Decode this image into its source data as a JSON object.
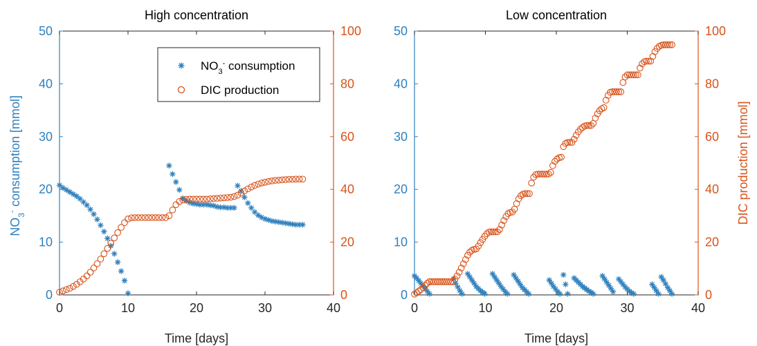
{
  "colors": {
    "nitrate": "#2e80be",
    "dic": "#d95319",
    "axis": "#262626"
  },
  "chart_data": [
    {
      "type": "scatter",
      "title": "High concentration",
      "xlabel": "Time [days]",
      "ylabel_left": "NO₃⁻ consumption [mmol]",
      "ylabel_right": "",
      "xlim": [
        0,
        40
      ],
      "ylim_left": [
        0,
        50
      ],
      "ylim_right": [
        0,
        100
      ],
      "xticks": [
        "0",
        "10",
        "20",
        "30",
        "40"
      ],
      "yticks_left": [
        "0",
        "10",
        "20",
        "30",
        "40",
        "50"
      ],
      "yticks_right": [
        "0",
        "20",
        "40",
        "60",
        "80",
        "100"
      ],
      "legend": {
        "position": "top-right",
        "entries": [
          "NO₃⁻ consumption",
          "DIC production"
        ]
      },
      "series": [
        {
          "name": "NO₃⁻ consumption",
          "axis": "left",
          "marker": "asterisk",
          "x": [
            0,
            0.5,
            1,
            1.5,
            2,
            2.5,
            3,
            3.5,
            4,
            4.5,
            5,
            5.5,
            6,
            6.5,
            7,
            7.5,
            8,
            8.5,
            9,
            9.5,
            10,
            16,
            16.5,
            17,
            17.5,
            18,
            18.5,
            19,
            19.5,
            20,
            20.5,
            21,
            21.5,
            22,
            22.5,
            23,
            23.5,
            24,
            24.5,
            25,
            25.5,
            26,
            26.5,
            27,
            27.5,
            28,
            28.5,
            29,
            29.5,
            30,
            30.5,
            31,
            31.5,
            32,
            32.5,
            33,
            33.5,
            34,
            34.5,
            35,
            35.5
          ],
          "y": [
            20.8,
            20.3,
            19.9,
            19.5,
            19.1,
            18.7,
            18.2,
            17.6,
            17.0,
            16.2,
            15.3,
            14.3,
            13.2,
            12.0,
            10.7,
            9.3,
            7.8,
            6.2,
            4.5,
            2.7,
            0.3,
            24.5,
            22.9,
            21.4,
            19.9,
            18.3,
            17.8,
            17.5,
            17.3,
            17.2,
            17.1,
            17.1,
            17.1,
            17.0,
            16.9,
            16.7,
            16.6,
            16.6,
            16.5,
            16.5,
            16.5,
            20.7,
            19.7,
            18.5,
            17.4,
            16.5,
            15.7,
            15.1,
            14.7,
            14.4,
            14.2,
            14.0,
            13.9,
            13.8,
            13.7,
            13.6,
            13.5,
            13.4,
            13.3,
            13.3,
            13.3
          ]
        },
        {
          "name": "DIC production",
          "axis": "right",
          "marker": "circle",
          "x": [
            0,
            0.5,
            1,
            1.5,
            2,
            2.5,
            3,
            3.5,
            4,
            4.5,
            5,
            5.5,
            6,
            6.5,
            7,
            7.5,
            8,
            8.5,
            9,
            9.5,
            10,
            10.5,
            11,
            11.5,
            12,
            12.5,
            13,
            13.5,
            14,
            14.5,
            15,
            15.5,
            16,
            16.5,
            17,
            17.5,
            18,
            18.5,
            19,
            19.5,
            20,
            20.5,
            21,
            21.5,
            22,
            22.5,
            23,
            23.5,
            24,
            24.5,
            25,
            25.5,
            26,
            26.5,
            27,
            27.5,
            28,
            28.5,
            29,
            29.5,
            30,
            30.5,
            31,
            31.5,
            32,
            32.5,
            33,
            33.5,
            34,
            34.5,
            35,
            35.5
          ],
          "y": [
            1.0,
            1.5,
            2.0,
            2.5,
            3.2,
            4.0,
            5.0,
            6.0,
            7.2,
            8.6,
            10.2,
            11.8,
            13.6,
            15.6,
            17.6,
            19.6,
            21.6,
            23.6,
            25.6,
            27.4,
            28.8,
            29.2,
            29.3,
            29.3,
            29.3,
            29.3,
            29.3,
            29.3,
            29.3,
            29.3,
            29.3,
            29.3,
            30.0,
            32.2,
            34.2,
            35.4,
            36.0,
            36.2,
            36.3,
            36.3,
            36.3,
            36.3,
            36.3,
            36.3,
            36.4,
            36.5,
            36.6,
            36.7,
            36.8,
            36.9,
            37.0,
            37.3,
            37.8,
            38.6,
            39.4,
            40.2,
            40.9,
            41.5,
            42.0,
            42.4,
            42.7,
            43.0,
            43.2,
            43.4,
            43.5,
            43.6,
            43.7,
            43.8,
            43.8,
            43.9,
            43.9,
            43.9
          ]
        }
      ]
    },
    {
      "type": "scatter",
      "title": "Low concentration",
      "xlabel": "Time [days]",
      "ylabel_left": "",
      "ylabel_right": "DIC production [mmol]",
      "xlim": [
        0,
        40
      ],
      "ylim_left": [
        0,
        50
      ],
      "ylim_right": [
        0,
        100
      ],
      "xticks": [
        "0",
        "10",
        "20",
        "30",
        "40"
      ],
      "yticks_left": [
        "0",
        "10",
        "20",
        "30",
        "40",
        "50"
      ],
      "yticks_right": [
        "0",
        "20",
        "40",
        "60",
        "80",
        "100"
      ],
      "series": [
        {
          "name": "NO₃⁻ consumption",
          "axis": "left",
          "marker": "asterisk",
          "x": [
            0,
            0.3,
            0.6,
            0.9,
            1.2,
            1.5,
            1.8,
            2.1,
            5.5,
            5.8,
            6.1,
            6.4,
            6.7,
            7.5,
            7.8,
            8.1,
            8.4,
            8.7,
            9.0,
            9.3,
            9.6,
            9.9,
            11.0,
            11.3,
            11.6,
            11.9,
            12.2,
            12.5,
            12.8,
            13.1,
            14.0,
            14.3,
            14.6,
            14.9,
            15.2,
            15.5,
            15.8,
            16.1,
            19.0,
            19.3,
            19.6,
            19.9,
            20.2,
            20.5,
            21.0,
            21.3,
            21.6,
            22.5,
            22.8,
            23.1,
            23.4,
            23.7,
            24.0,
            24.3,
            24.6,
            24.9,
            25.2,
            26.5,
            26.8,
            27.1,
            27.4,
            27.7,
            28.0,
            28.8,
            29.1,
            29.4,
            29.7,
            30.0,
            30.3,
            30.6,
            30.9,
            33.5,
            33.8,
            34.1,
            34.4,
            34.8,
            35.1,
            35.4,
            35.7,
            36.0,
            36.3
          ],
          "y": [
            3.6,
            3.2,
            2.7,
            2.2,
            1.7,
            1.2,
            0.7,
            0.2,
            3.0,
            2.2,
            1.5,
            0.8,
            0.2,
            4.0,
            3.4,
            2.8,
            2.2,
            1.6,
            1.2,
            0.8,
            0.5,
            0.2,
            4.0,
            3.4,
            2.8,
            2.2,
            1.6,
            1.1,
            0.6,
            0.2,
            3.8,
            3.2,
            2.6,
            2.0,
            1.4,
            1.0,
            0.6,
            0.2,
            2.8,
            2.2,
            1.6,
            1.1,
            0.6,
            0.2,
            3.8,
            2.0,
            0.2,
            3.2,
            2.8,
            2.4,
            2.0,
            1.6,
            1.3,
            1.0,
            0.7,
            0.5,
            0.2,
            3.6,
            3.0,
            2.4,
            1.8,
            1.2,
            0.6,
            3.0,
            2.5,
            2.0,
            1.5,
            1.1,
            0.7,
            0.4,
            0.2,
            2.0,
            1.4,
            0.8,
            0.2,
            3.4,
            2.8,
            2.1,
            1.4,
            0.8,
            0.2
          ]
        },
        {
          "name": "DIC production",
          "axis": "right",
          "marker": "circle",
          "x": [
            0,
            0.3,
            0.6,
            0.9,
            1.2,
            1.5,
            1.8,
            2.1,
            2.4,
            2.7,
            3.0,
            3.3,
            3.6,
            3.9,
            4.2,
            4.5,
            4.8,
            5.1,
            5.4,
            5.7,
            6.0,
            6.3,
            6.6,
            6.9,
            7.2,
            7.5,
            7.8,
            8.1,
            8.4,
            8.7,
            9.0,
            9.3,
            9.6,
            9.9,
            10.2,
            10.5,
            10.8,
            11.1,
            11.4,
            11.7,
            12.0,
            12.3,
            12.6,
            12.9,
            13.2,
            13.5,
            13.8,
            14.1,
            14.4,
            14.7,
            15.0,
            15.3,
            15.6,
            15.9,
            16.2,
            16.5,
            16.8,
            17.1,
            17.4,
            17.7,
            18.0,
            18.3,
            18.6,
            18.9,
            19.2,
            19.5,
            19.8,
            20.1,
            20.4,
            20.7,
            21.0,
            21.3,
            21.6,
            21.9,
            22.2,
            22.5,
            22.8,
            23.1,
            23.4,
            23.7,
            24.0,
            24.3,
            24.6,
            24.9,
            25.2,
            25.5,
            25.8,
            26.1,
            26.4,
            26.7,
            27.0,
            27.3,
            27.6,
            27.9,
            28.2,
            28.5,
            28.8,
            29.1,
            29.4,
            29.7,
            30.0,
            30.3,
            30.6,
            30.9,
            31.2,
            31.5,
            31.8,
            32.1,
            32.4,
            32.7,
            33.0,
            33.3,
            33.6,
            33.9,
            34.2,
            34.5,
            34.8,
            35.1,
            35.4,
            35.7,
            36.0,
            36.3
          ],
          "y": [
            0.3,
            0.8,
            1.4,
            2.0,
            2.8,
            3.6,
            4.4,
            5.0,
            5.0,
            5.0,
            5.0,
            5.0,
            5.0,
            5.0,
            5.0,
            5.0,
            5.0,
            5.0,
            5.0,
            6.0,
            7.2,
            8.6,
            10.2,
            11.8,
            13.4,
            15.0,
            16.2,
            16.9,
            17.3,
            17.4,
            18.5,
            19.8,
            21.0,
            22.2,
            23.2,
            23.8,
            23.9,
            23.9,
            23.9,
            23.9,
            24.8,
            26.5,
            28.2,
            29.7,
            30.8,
            31.3,
            31.4,
            32.5,
            34.6,
            36.4,
            37.6,
            38.2,
            38.4,
            38.4,
            38.4,
            42.4,
            44.6,
            45.6,
            45.8,
            45.8,
            45.8,
            45.8,
            45.8,
            45.8,
            46.4,
            49.0,
            50.6,
            51.5,
            52.0,
            52.2,
            56.2,
            57.4,
            57.8,
            57.8,
            57.8,
            59.0,
            60.5,
            61.8,
            62.8,
            63.5,
            64.0,
            64.2,
            64.2,
            64.2,
            65.0,
            67.0,
            68.6,
            69.8,
            70.6,
            71.0,
            73.8,
            75.6,
            76.8,
            77.0,
            77.0,
            77.0,
            77.0,
            77.0,
            80.5,
            82.6,
            83.4,
            83.4,
            83.4,
            83.4,
            83.4,
            83.4,
            86.0,
            87.6,
            88.4,
            88.6,
            88.6,
            88.6,
            90.4,
            92.2,
            93.4,
            94.2,
            94.6,
            94.8,
            94.8,
            94.8,
            94.8,
            94.8
          ]
        }
      ]
    }
  ]
}
